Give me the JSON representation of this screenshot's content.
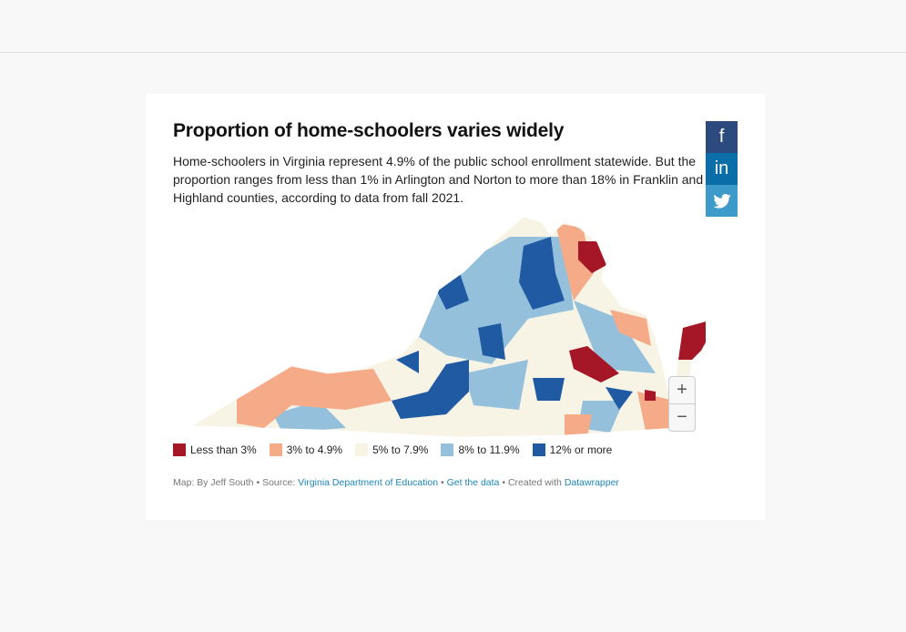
{
  "title": "Proportion of home-schoolers varies widely",
  "description": "Home-schoolers in Virginia represent 4.9% of the public school enrollment statewide. But the proportion ranges from less than 1% in Arlington and Norton to more than 18% in Franklin and Highland counties, according to data from fall 2021.",
  "share": {
    "facebook": "f",
    "linkedin": "in",
    "twitter": "twitter-icon"
  },
  "zoom": {
    "in": "+",
    "out": "−"
  },
  "legend": [
    {
      "label": "Less than 3%",
      "color": "#a51626"
    },
    {
      "label": "3% to 4.9%",
      "color": "#f5aa88"
    },
    {
      "label": "5% to 7.9%",
      "color": "#f7f4e6"
    },
    {
      "label": "8% to 11.9%",
      "color": "#95c0dc"
    },
    {
      "label": "12% or more",
      "color": "#1f5aa3"
    }
  ],
  "footer": {
    "map_by": "Map: By Jeff South",
    "source_label": "Source:",
    "source": "Virginia Department of Education",
    "get_data": "Get the data",
    "created": "Created with",
    "tool": "Datawrapper",
    "sep": "•"
  }
}
